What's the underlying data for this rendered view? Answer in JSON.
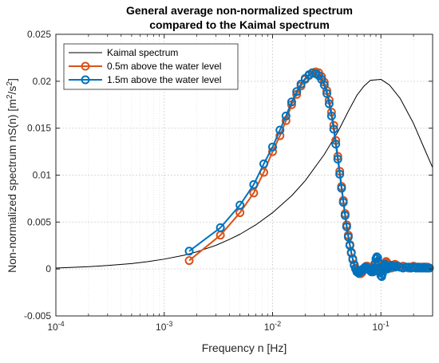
{
  "chart_data": {
    "type": "line",
    "title": "General average non-normalized spectrum",
    "subtitle": "compared to the Kaimal spectrum",
    "xlabel": "Frequency n [Hz]",
    "ylabel_prefix": "Non-normalized spectrum nS(n) [m",
    "ylabel_sup1": "2",
    "ylabel_mid": "/s",
    "ylabel_sup2": "2",
    "ylabel_suffix": "]",
    "xscale": "log",
    "xlim": [
      0.0001,
      0.3
    ],
    "ylim": [
      -0.005,
      0.025
    ],
    "grid": true,
    "legend_position": "top-left",
    "x_ticks": [
      0.0001,
      0.001,
      0.01,
      0.1
    ],
    "x_tick_labels": [
      {
        "base": "10",
        "exp": "-4"
      },
      {
        "base": "10",
        "exp": "-3"
      },
      {
        "base": "10",
        "exp": "-2"
      },
      {
        "base": "10",
        "exp": "-1"
      }
    ],
    "y_ticks": [
      -0.005,
      0,
      0.005,
      0.01,
      0.015,
      0.02,
      0.025
    ],
    "y_tick_labels": [
      "-0.005",
      "0",
      "0.005",
      "0.01",
      "0.015",
      "0.02",
      "0.025"
    ],
    "series": [
      {
        "name": "Kaimal spectrum",
        "color": "#000000",
        "marker": "none",
        "x": [
          0.0001,
          0.0002,
          0.0003,
          0.0005,
          0.0007,
          0.001,
          0.0015,
          0.002,
          0.003,
          0.004,
          0.005,
          0.007,
          0.01,
          0.015,
          0.02,
          0.03,
          0.04,
          0.05,
          0.06,
          0.07,
          0.08,
          0.1,
          0.12,
          0.15,
          0.2,
          0.25,
          0.3
        ],
        "y": [
          0.0001,
          0.00025,
          0.00037,
          0.00058,
          0.00078,
          0.00105,
          0.00145,
          0.00183,
          0.00252,
          0.00315,
          0.0037,
          0.0047,
          0.006,
          0.0078,
          0.0094,
          0.0122,
          0.0146,
          0.0168,
          0.0185,
          0.0195,
          0.0201,
          0.0202,
          0.0196,
          0.0182,
          0.0155,
          0.0129,
          0.0108
        ]
      },
      {
        "name": "0.5m above the water level",
        "color": "#d95319",
        "marker": "circle",
        "x": [
          0.0017,
          0.0033,
          0.005,
          0.0067,
          0.0083,
          0.01,
          0.0117,
          0.0133,
          0.015,
          0.0167,
          0.0183,
          0.02,
          0.0217,
          0.0233,
          0.025,
          0.0267,
          0.0283,
          0.03,
          0.0317,
          0.0333,
          0.035,
          0.0367,
          0.0383,
          0.04,
          0.0417,
          0.0433,
          0.045,
          0.0467,
          0.0483,
          0.05,
          0.0517,
          0.0533,
          0.055,
          0.0567,
          0.0583,
          0.06,
          0.0617,
          0.0633,
          0.065,
          0.0667,
          0.0683,
          0.07,
          0.0717,
          0.0733,
          0.075,
          0.0767,
          0.0783,
          0.08,
          0.0817,
          0.0833,
          0.085,
          0.0867,
          0.0883,
          0.09,
          0.0917,
          0.0933,
          0.095,
          0.0967,
          0.0983,
          0.1,
          0.1017,
          0.1033,
          0.105,
          0.1067,
          0.1083,
          0.11,
          0.1117,
          0.1133,
          0.115,
          0.1167,
          0.12,
          0.125,
          0.13,
          0.135,
          0.14,
          0.15,
          0.16,
          0.17,
          0.18,
          0.19,
          0.2,
          0.21,
          0.22,
          0.23,
          0.24,
          0.25,
          0.26,
          0.27,
          0.28
        ],
        "y": [
          0.0009,
          0.0036,
          0.006,
          0.0081,
          0.0103,
          0.0125,
          0.0142,
          0.0158,
          0.0175,
          0.0186,
          0.0195,
          0.0202,
          0.0206,
          0.0209,
          0.021,
          0.0209,
          0.0205,
          0.0199,
          0.019,
          0.018,
          0.0167,
          0.0153,
          0.0137,
          0.012,
          0.0104,
          0.0088,
          0.0073,
          0.0059,
          0.0047,
          0.0036,
          0.0026,
          0.0018,
          0.0011,
          0.0005,
          0.0001,
          -0.0002,
          -0.0004,
          -0.0005,
          -0.0005,
          -0.0004,
          -0.0002,
          0.0,
          0.0002,
          0.0003,
          0.0003,
          0.0002,
          0.0001,
          0.0,
          -0.0001,
          -0.0002,
          -0.0003,
          -0.0002,
          0.0,
          0.0004,
          0.0007,
          0.0008,
          0.0007,
          0.0004,
          0.0002,
          0.0001,
          0.0,
          -0.0001,
          -0.0001,
          0.0,
          0.0003,
          0.0006,
          0.0008,
          0.0007,
          0.0005,
          0.0003,
          0.0002,
          0.0001,
          0.0003,
          0.0005,
          0.0004,
          0.0002,
          0.0003,
          0.0002,
          0.0001,
          0.0002,
          0.0003,
          0.0002,
          0.0001,
          0.0002,
          0.0002,
          0.0001,
          0.0002,
          0.0002,
          0.0001
        ]
      },
      {
        "name": "1.5m above the water level",
        "color": "#0072bd",
        "marker": "circle",
        "x": [
          0.0017,
          0.0033,
          0.005,
          0.0067,
          0.0083,
          0.01,
          0.0117,
          0.0133,
          0.015,
          0.0167,
          0.0183,
          0.02,
          0.0217,
          0.0233,
          0.025,
          0.0267,
          0.0283,
          0.03,
          0.0317,
          0.0333,
          0.035,
          0.0367,
          0.0383,
          0.04,
          0.0417,
          0.0433,
          0.045,
          0.0467,
          0.0483,
          0.05,
          0.0517,
          0.0533,
          0.055,
          0.0567,
          0.0583,
          0.06,
          0.0617,
          0.0633,
          0.065,
          0.0667,
          0.0683,
          0.07,
          0.0717,
          0.0733,
          0.075,
          0.0767,
          0.0783,
          0.08,
          0.0817,
          0.0833,
          0.085,
          0.0867,
          0.0883,
          0.09,
          0.0917,
          0.0933,
          0.095,
          0.0967,
          0.0983,
          0.1,
          0.1017,
          0.1033,
          0.105,
          0.1067,
          0.1083,
          0.11,
          0.1117,
          0.1133,
          0.115,
          0.1167,
          0.12,
          0.125,
          0.13,
          0.135,
          0.14,
          0.15,
          0.16,
          0.17,
          0.18,
          0.19,
          0.2,
          0.21,
          0.22,
          0.23,
          0.24,
          0.25,
          0.26,
          0.27,
          0.28
        ],
        "y": [
          0.0019,
          0.0044,
          0.0068,
          0.009,
          0.0112,
          0.013,
          0.0148,
          0.0163,
          0.0178,
          0.0189,
          0.0197,
          0.0203,
          0.0207,
          0.0209,
          0.0208,
          0.0206,
          0.0202,
          0.0196,
          0.0187,
          0.0176,
          0.0163,
          0.0149,
          0.0133,
          0.0117,
          0.0101,
          0.0086,
          0.0071,
          0.0057,
          0.0045,
          0.0034,
          0.0025,
          0.0017,
          0.001,
          0.0004,
          0.0,
          -0.0003,
          -0.0004,
          -0.0004,
          -0.0003,
          -0.0002,
          0.0,
          0.0001,
          0.0002,
          0.0002,
          0.0001,
          0.0,
          -0.0001,
          -0.0002,
          -0.0003,
          -0.0003,
          -0.0002,
          0.0001,
          0.0006,
          0.0011,
          0.0013,
          0.0012,
          0.0007,
          0.0001,
          -0.0004,
          -0.0007,
          -0.0008,
          -0.0005,
          0.0,
          0.0003,
          0.0005,
          0.0004,
          0.0002,
          0.0001,
          0.0,
          0.0001,
          0.0002,
          0.0004,
          0.0003,
          0.0002,
          0.0003,
          0.0002,
          0.0001,
          0.0002,
          0.0002,
          0.0001,
          0.0002,
          0.0001,
          0.0002,
          0.0001,
          0.0001,
          0.0002,
          0.0001,
          0.0001,
          0.0001
        ]
      }
    ]
  }
}
